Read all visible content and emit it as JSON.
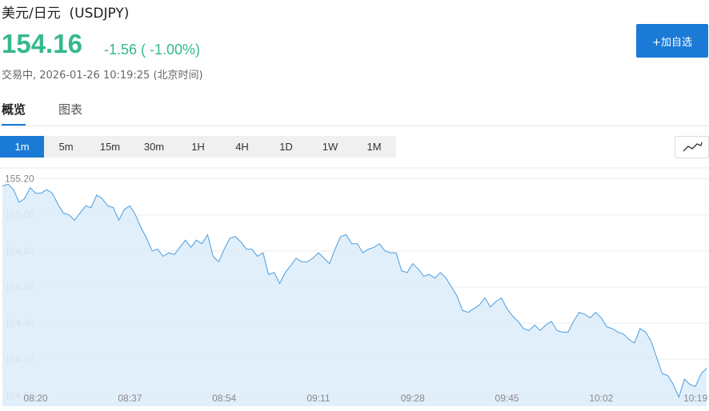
{
  "header": {
    "title": "美元/日元  (USDJPY)",
    "price": "154.16",
    "change": "-1.56 ( -1.00%)",
    "status": "交易中, 2026-01-26 10:19:25 (北京时间)",
    "button": "+加自选"
  },
  "tabs": [
    "概览",
    "图表"
  ],
  "intervals": [
    "1m",
    "5m",
    "15m",
    "30m",
    "1H",
    "4H",
    "1D",
    "1W",
    "1M"
  ],
  "selected_interval": 0,
  "chart_data": {
    "type": "area",
    "color": "#4a9ee0",
    "fill": "#deedfb",
    "grid": true,
    "x": [
      494,
      495,
      496,
      497,
      498,
      499,
      500,
      501,
      502,
      503,
      504,
      505,
      506,
      507,
      508,
      509,
      510,
      511,
      512,
      513,
      514,
      515,
      516,
      517,
      518,
      519,
      520,
      521,
      522,
      523,
      524,
      525,
      526,
      527,
      528,
      529,
      530,
      531,
      532,
      533,
      534,
      535,
      536,
      537,
      538,
      539,
      540,
      541,
      542,
      543,
      544,
      545,
      546,
      547,
      548,
      549,
      550,
      551,
      552,
      553,
      554,
      555,
      556,
      557,
      558,
      559,
      560,
      561,
      562,
      563,
      564,
      565,
      566,
      567,
      568,
      569,
      570,
      571,
      572,
      573,
      574,
      575,
      576,
      577,
      578,
      579,
      580,
      581,
      582,
      583,
      584,
      585,
      586,
      587,
      588,
      589,
      590,
      591,
      592,
      593,
      594,
      595,
      596,
      597,
      598,
      599,
      600,
      601,
      602,
      603,
      604,
      605,
      606,
      607,
      608,
      609,
      610,
      611,
      612,
      613,
      614,
      615,
      616,
      617,
      618,
      619,
      620,
      621
    ],
    "values": [
      155.16,
      155.17,
      155.14,
      155.07,
      155.09,
      155.15,
      155.12,
      155.12,
      155.14,
      155.12,
      155.06,
      155.01,
      155.0,
      154.97,
      155.01,
      155.05,
      155.04,
      155.11,
      155.09,
      155.05,
      155.04,
      154.97,
      155.03,
      155.05,
      155.0,
      154.93,
      154.87,
      154.8,
      154.81,
      154.77,
      154.79,
      154.78,
      154.82,
      154.86,
      154.82,
      154.86,
      154.84,
      154.89,
      154.77,
      154.74,
      154.81,
      154.87,
      154.88,
      154.85,
      154.81,
      154.81,
      154.77,
      154.79,
      154.67,
      154.68,
      154.62,
      154.68,
      154.72,
      154.76,
      154.74,
      154.74,
      154.76,
      154.79,
      154.76,
      154.73,
      154.81,
      154.88,
      154.89,
      154.84,
      154.84,
      154.79,
      154.81,
      154.82,
      154.84,
      154.8,
      154.79,
      154.79,
      154.69,
      154.68,
      154.73,
      154.7,
      154.66,
      154.67,
      154.65,
      154.68,
      154.65,
      154.6,
      154.55,
      154.47,
      154.46,
      154.48,
      154.5,
      154.54,
      154.49,
      154.52,
      154.54,
      154.48,
      154.44,
      154.41,
      154.37,
      154.36,
      154.39,
      154.36,
      154.39,
      154.41,
      154.36,
      154.35,
      154.35,
      154.41,
      154.46,
      154.45,
      154.43,
      154.46,
      154.43,
      154.38,
      154.37,
      154.35,
      154.34,
      154.31,
      154.29,
      154.37,
      154.35,
      154.3,
      154.21,
      154.12,
      154.11,
      154.06,
      153.99,
      154.09,
      154.06,
      154.05,
      154.12,
      154.15
    ],
    "xlim": [
      494,
      621
    ],
    "ylim": [
      153.94,
      155.26
    ],
    "yticks": [
      {
        "value": 155.2,
        "label": "155.20"
      },
      {
        "value": 155.0,
        "label": "155.00"
      },
      {
        "value": 154.8,
        "label": "154.80"
      },
      {
        "value": 154.6,
        "label": "154.60"
      },
      {
        "value": 154.4,
        "label": "154.40"
      },
      {
        "value": 154.2,
        "label": "154.20"
      },
      {
        "value": 154.0,
        "label": "154.00"
      }
    ],
    "xticks": [
      {
        "value": 500,
        "label": "08:20"
      },
      {
        "value": 517,
        "label": "08:37"
      },
      {
        "value": 534,
        "label": "08:54"
      },
      {
        "value": 551,
        "label": "09:11"
      },
      {
        "value": 568,
        "label": "09:28"
      },
      {
        "value": 585,
        "label": "09:45"
      },
      {
        "value": 602,
        "label": "10:02"
      },
      {
        "value": 619,
        "label": "10:19"
      }
    ]
  }
}
